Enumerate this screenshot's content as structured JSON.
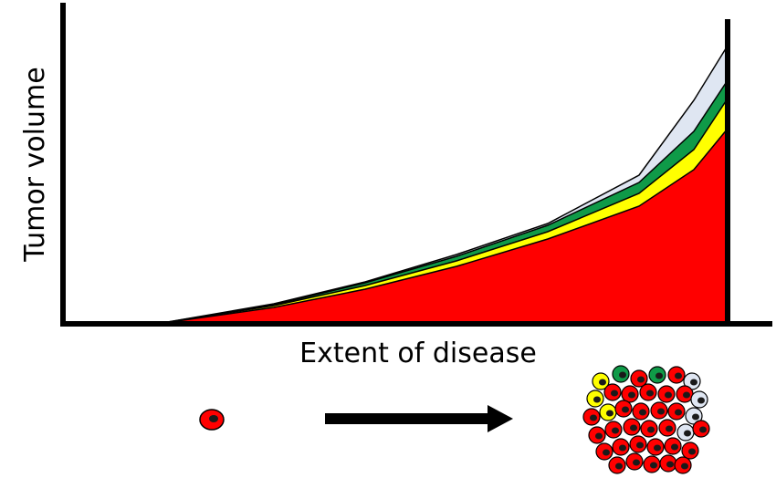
{
  "chart_data": {
    "type": "area",
    "stacked": true,
    "xlabel": "Extent of disease",
    "ylabel": "Tumor volume",
    "grid": false,
    "legend": "none",
    "tick_labels": "none",
    "series": [
      {
        "color": "#ff0000"
      },
      {
        "color": "#ffff00"
      },
      {
        "color": "#0f9a48"
      },
      {
        "color": "#dfe6f2"
      }
    ]
  },
  "illustration": {
    "arrow_icon": "right-arrow",
    "single_cell_color": "#ff0000",
    "cell_nucleus_color": "#1a1a1a",
    "cluster_colors": [
      "#ff0000",
      "#ffff00",
      "#0f9a48",
      "#dfe6f2"
    ]
  }
}
